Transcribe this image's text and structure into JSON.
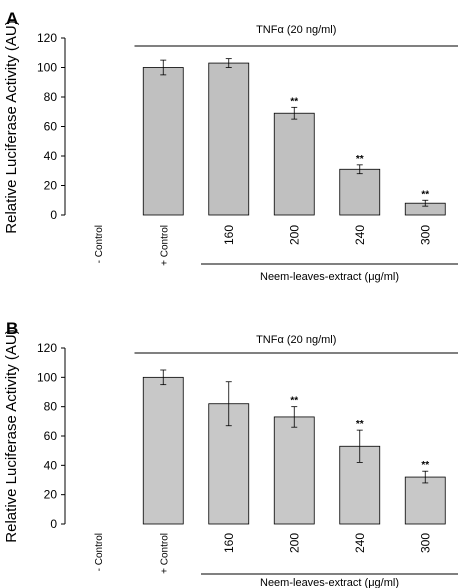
{
  "chart_data": [
    {
      "type": "bar",
      "panel": "A",
      "ylabel": "Relative Luciferase Activity (AU)",
      "ylim": [
        0,
        120
      ],
      "yticks": [
        "0",
        "20",
        "40",
        "60",
        "80",
        "100",
        "120"
      ],
      "categories": [
        "- Control",
        "+ Control",
        "160",
        "200",
        "240",
        "300"
      ],
      "values": [
        0,
        100,
        103,
        69,
        31,
        8
      ],
      "errors": [
        0,
        5,
        3,
        4,
        3,
        2
      ],
      "significance": [
        "",
        "",
        "",
        "**",
        "**",
        "**"
      ],
      "top_bracket_label": "TNFα (20 ng/ml)",
      "bottom_bracket_label": "Neem-leaves-extract (μg/ml)",
      "bar_color": "#c0c0c0"
    },
    {
      "type": "bar",
      "panel": "B",
      "ylabel": "Relative Luciferase Activity (AU)",
      "ylim": [
        0,
        120
      ],
      "yticks": [
        "0",
        "20",
        "40",
        "60",
        "80",
        "100",
        "120"
      ],
      "categories": [
        "- Control",
        "+ Control",
        "160",
        "200",
        "240",
        "300"
      ],
      "values": [
        0,
        100,
        82,
        73,
        53,
        32
      ],
      "errors": [
        0,
        5,
        15,
        7,
        11,
        4
      ],
      "significance": [
        "",
        "",
        "",
        "**",
        "**",
        "**"
      ],
      "top_bracket_label": "TNFα (20 ng/ml)",
      "bottom_bracket_label": "Neem-leaves-extract (μg/ml)",
      "bar_color": "#c8c8c8"
    }
  ]
}
